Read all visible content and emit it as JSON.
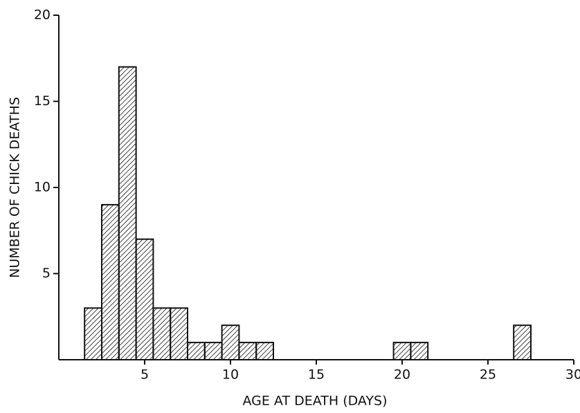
{
  "chart_data": {
    "type": "histogram",
    "x_label": "AGE AT DEATH (DAYS)",
    "y_label": "NUMBER OF CHICK DEATHS",
    "bins": [
      1.5,
      2.5,
      3.5,
      4.5,
      5.5,
      6.5,
      7.5,
      8.5,
      9.5,
      10.5,
      11.5,
      12.5,
      13.5,
      14.5,
      15.5,
      16.5,
      17.5,
      18.5,
      19.5,
      20.5,
      21.5,
      22.5,
      23.5,
      24.5,
      25.5,
      26.5,
      27.5
    ],
    "counts": [
      3,
      9,
      17,
      7,
      3,
      3,
      1,
      1,
      2,
      1,
      1,
      0,
      0,
      0,
      0,
      0,
      0,
      0,
      1,
      1,
      0,
      0,
      0,
      0,
      0,
      2
    ],
    "color": "#111111",
    "xlim": [
      0,
      30
    ],
    "xticks": [
      5,
      10,
      15,
      20,
      25,
      30
    ],
    "ylim": [
      0,
      20
    ],
    "yticks": [
      5,
      10,
      15,
      20
    ]
  }
}
